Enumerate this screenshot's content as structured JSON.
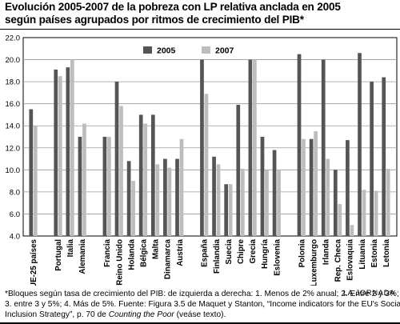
{
  "title_line1": "Evolución 2005-2007 de la pobreza con LP relativa anclada en 2005",
  "title_line2": "según países agrupados por ritmos de crecimiento del PIB*",
  "footnote": {
    "line1": "*Bloques según tasa de crecimiento del PIB: de izquierda a derecha: 1. Menos de 2% anual; 2. Entre 2 y 3%;",
    "line2": "3. entre 3 y 5%; 4. Más de 5%. Fuente: Figura 3.5 de Maquet y Stanton, “Income indicators for the EU's Social",
    "line3_pre": "Inclusion Strategy”, p. 70 de ",
    "line3_italic": "Counting the Poor",
    "line3_post": " (veáse texto)."
  },
  "source": "LA JORNADA",
  "colors": {
    "s2005": "#555555",
    "s2007": "#bdbdbd"
  },
  "chart_data": {
    "type": "bar",
    "title": "Evolución 2005-2007 de la pobreza con LP relativa anclada en 2005",
    "subtitle": "según países agrupados por ritmos de crecimiento del PIB*",
    "xlabel": "",
    "ylabel": "",
    "ylim": [
      4.0,
      22.0
    ],
    "yticks": [
      "4.0",
      "6.0",
      "8.0",
      "10.0",
      "12.0",
      "14.0",
      "16.0",
      "18.0",
      "20.0",
      "22.0"
    ],
    "grid": true,
    "legend": "top-left",
    "groups": [
      [
        "UE-25 países"
      ],
      [
        "Portugal",
        "Italia",
        "Alemania"
      ],
      [
        "Francia",
        "Reino Unido",
        "Holanda",
        "Bélgica",
        "Malta",
        "Dinamarca",
        "Austria"
      ],
      [
        "España",
        "Finlandia",
        "Suecia",
        "Chipre",
        "Grecia",
        "Hungría",
        "Eslovenia"
      ],
      [
        "Polonia",
        "Luxemburgo",
        "Irlanda",
        "Rep. Checa",
        "Eslovaquia",
        "Lituania",
        "Estonia",
        "Letonia"
      ]
    ],
    "categories": [
      "UE-25 países",
      "Portugal",
      "Italia",
      "Alemania",
      "Francia",
      "Reino Unido",
      "Holanda",
      "Bélgica",
      "Malta",
      "Dinamarca",
      "Austria",
      "España",
      "Finlandia",
      "Suecia",
      "Chipre",
      "Grecia",
      "Hungría",
      "Eslovenia",
      "Polonia",
      "Luxemburgo",
      "Irlanda",
      "Rep. Checa",
      "Eslovaquia",
      "Lituania",
      "Estonia",
      "Letonia"
    ],
    "series": [
      {
        "name": "2005",
        "values": [
          15.5,
          19.1,
          19.3,
          13.0,
          13.0,
          18.0,
          10.8,
          15.0,
          15.0,
          11.0,
          11.0,
          20.0,
          11.2,
          8.7,
          15.9,
          20.0,
          13.0,
          11.8,
          20.5,
          12.8,
          20.0,
          10.0,
          12.7,
          20.6,
          18.0,
          18.4
        ]
      },
      {
        "name": "2007",
        "values": [
          14.0,
          18.5,
          20.0,
          14.2,
          13.0,
          15.8,
          9.0,
          14.2,
          10.5,
          10.2,
          12.8,
          16.9,
          10.5,
          8.7,
          10.1,
          20.0,
          10.0,
          10.0,
          12.8,
          13.5,
          11.0,
          6.9,
          5.0,
          8.2,
          8.1,
          10.1
        ]
      }
    ]
  }
}
